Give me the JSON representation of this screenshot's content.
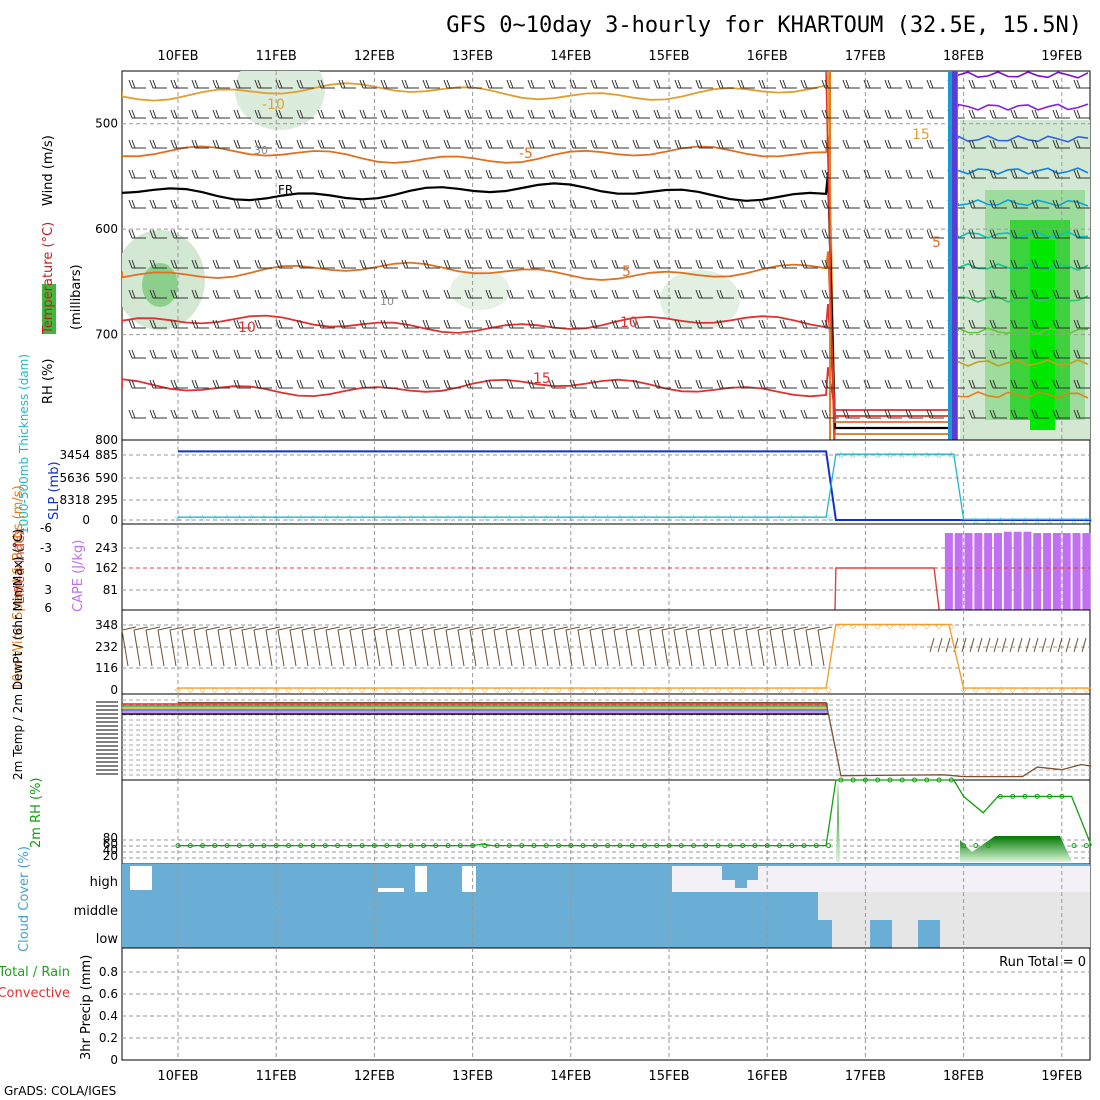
{
  "title": "GFS 0~10day 3-hourly for KHARTOUM (32.5E, 15.5N)",
  "footer": "GrADS: COLA/IGES",
  "dates": [
    "10FEB",
    "11FEB",
    "12FEB",
    "13FEB",
    "14FEB",
    "15FEB",
    "16FEB",
    "17FEB",
    "18FEB",
    "19FEB"
  ],
  "colors": {
    "cape": "#c070f0",
    "slp": "#1030d0",
    "thickness": "#20b8c8",
    "lifted_index": "#e04040",
    "wind": "#f0a030",
    "dewpt": "#805030",
    "rh": "#10a010",
    "cloud": "#6aaed6",
    "cloud_bg": "#f4f0f8"
  },
  "chart_data": [
    {
      "type": "contour",
      "name": "upper-air",
      "ylabel_parts": [
        "RH (%)",
        "Temperature (°C)",
        "Wind (m/s)",
        "(millibars)"
      ],
      "y_ticks": [
        500,
        600,
        700,
        800
      ],
      "ylim": [
        450,
        800
      ],
      "y_reversed": true,
      "contour_labels": [
        "-10",
        "-5",
        "FR",
        "5",
        "10",
        "10",
        "15",
        "30",
        "10",
        "15",
        "5"
      ],
      "temperature_levels": [
        {
          "label": "-10",
          "pressure": 470
        },
        {
          "label": "-5",
          "pressure": 530
        },
        {
          "label": "FR",
          "pressure": 565
        },
        {
          "label": "5",
          "pressure": 640
        },
        {
          "label": "10",
          "pressure": 690
        },
        {
          "label": "15",
          "pressure": 750
        }
      ]
    },
    {
      "type": "line",
      "name": "slp-thickness",
      "ylabel_left": "1000-500mb Thickness (dam)",
      "ylabel_right": "SLP (mb)",
      "y_ticks_left": [
        "3454",
        "5636",
        "8318",
        "0"
      ],
      "y_ticks_right": [
        "885",
        "590",
        "295",
        "0"
      ],
      "ylim": [
        0,
        1000
      ],
      "series": [
        {
          "values": [
            [
              0,
              980
            ],
            [
              6.6,
              980
            ],
            [
              6.7,
              0
            ],
            [
              7.9,
              0
            ],
            [
              8.0,
              0
            ],
            [
              9.3,
              0
            ]
          ]
        },
        {
          "values": [
            [
              0,
              40
            ],
            [
              6.6,
              40
            ],
            [
              6.7,
              940
            ],
            [
              7.9,
              940
            ],
            [
              8.0,
              10
            ],
            [
              9.3,
              10
            ]
          ]
        }
      ]
    },
    {
      "type": "bar",
      "name": "cape-li",
      "ylabel_left": "Lifted Index",
      "ylabel_right": "CAPE (J/kg)",
      "y_ticks_left": [
        "-6",
        "-3",
        "0",
        "3",
        "6"
      ],
      "y_ticks_right": [
        "243",
        "162",
        "81"
      ],
      "cape_ylim": [
        0,
        324
      ],
      "cape_bars": [
        [
          7.85,
          290
        ],
        [
          7.95,
          290
        ],
        [
          8.05,
          290
        ],
        [
          8.15,
          290
        ],
        [
          8.25,
          290
        ],
        [
          8.35,
          290
        ],
        [
          8.45,
          295
        ],
        [
          8.55,
          295
        ],
        [
          8.65,
          295
        ],
        [
          8.75,
          290
        ],
        [
          8.85,
          290
        ],
        [
          8.95,
          290
        ],
        [
          9.05,
          290
        ],
        [
          9.15,
          290
        ],
        [
          9.25,
          290
        ]
      ],
      "li_series": [
        [
          6.7,
          162
        ],
        [
          7.7,
          162
        ],
        [
          7.75,
          0
        ]
      ]
    },
    {
      "type": "line",
      "name": "wind10m",
      "ylabel": "10m Wind Speed & Barbs (m/s)",
      "y_ticks": [
        "348",
        "232",
        "116",
        "0"
      ],
      "ylim": [
        0,
        400
      ],
      "series": [
        {
          "values": [
            [
              0,
              10
            ],
            [
              6.6,
              10
            ],
            [
              6.7,
              350
            ],
            [
              7.85,
              350
            ],
            [
              8.0,
              10
            ],
            [
              9.3,
              10
            ]
          ]
        }
      ]
    },
    {
      "type": "line",
      "name": "temp2m",
      "ylabel": "2m Temp / 2m DewPt / (6hr Min/Max) (°C)",
      "ylim": [
        0,
        100
      ],
      "series": [
        {
          "values": [
            [
              0,
              90
            ],
            [
              6.6,
              90
            ],
            [
              6.75,
              5
            ],
            [
              7.8,
              6
            ],
            [
              8.0,
              4
            ],
            [
              8.6,
              4
            ],
            [
              8.75,
              15
            ],
            [
              9.0,
              12
            ],
            [
              9.2,
              18
            ],
            [
              9.3,
              16
            ]
          ]
        }
      ]
    },
    {
      "type": "area",
      "name": "rh2m",
      "ylabel": "2m RH (%)",
      "y_ticks": [
        "80",
        "60",
        "40",
        "20"
      ],
      "ylim": [
        0,
        100
      ],
      "series": [
        {
          "values": [
            [
              0,
              20
            ],
            [
              3.0,
              20
            ],
            [
              3.1,
              22
            ],
            [
              3.2,
              20
            ],
            [
              6.6,
              20
            ],
            [
              6.7,
              100
            ],
            [
              6.8,
              100
            ],
            [
              7.0,
              100
            ],
            [
              7.9,
              100
            ],
            [
              8.0,
              80
            ],
            [
              8.2,
              60
            ],
            [
              8.35,
              80
            ],
            [
              9.1,
              80
            ],
            [
              9.3,
              20
            ]
          ]
        }
      ]
    },
    {
      "type": "area",
      "name": "cloud",
      "ylabel": "Cloud Cover (%)",
      "layers": [
        "high",
        "middle",
        "low"
      ]
    },
    {
      "type": "bar",
      "name": "precip",
      "ylabel_left": "Total / Rain",
      "ylabel_right": "Convective",
      "ylabel_inner": "3hr Precip (mm)",
      "y_ticks": [
        "0.8",
        "0.6",
        "0.4",
        "0.2",
        "0"
      ],
      "ylim": [
        0,
        1
      ],
      "annotation": "Run Total = 0",
      "values": []
    }
  ]
}
